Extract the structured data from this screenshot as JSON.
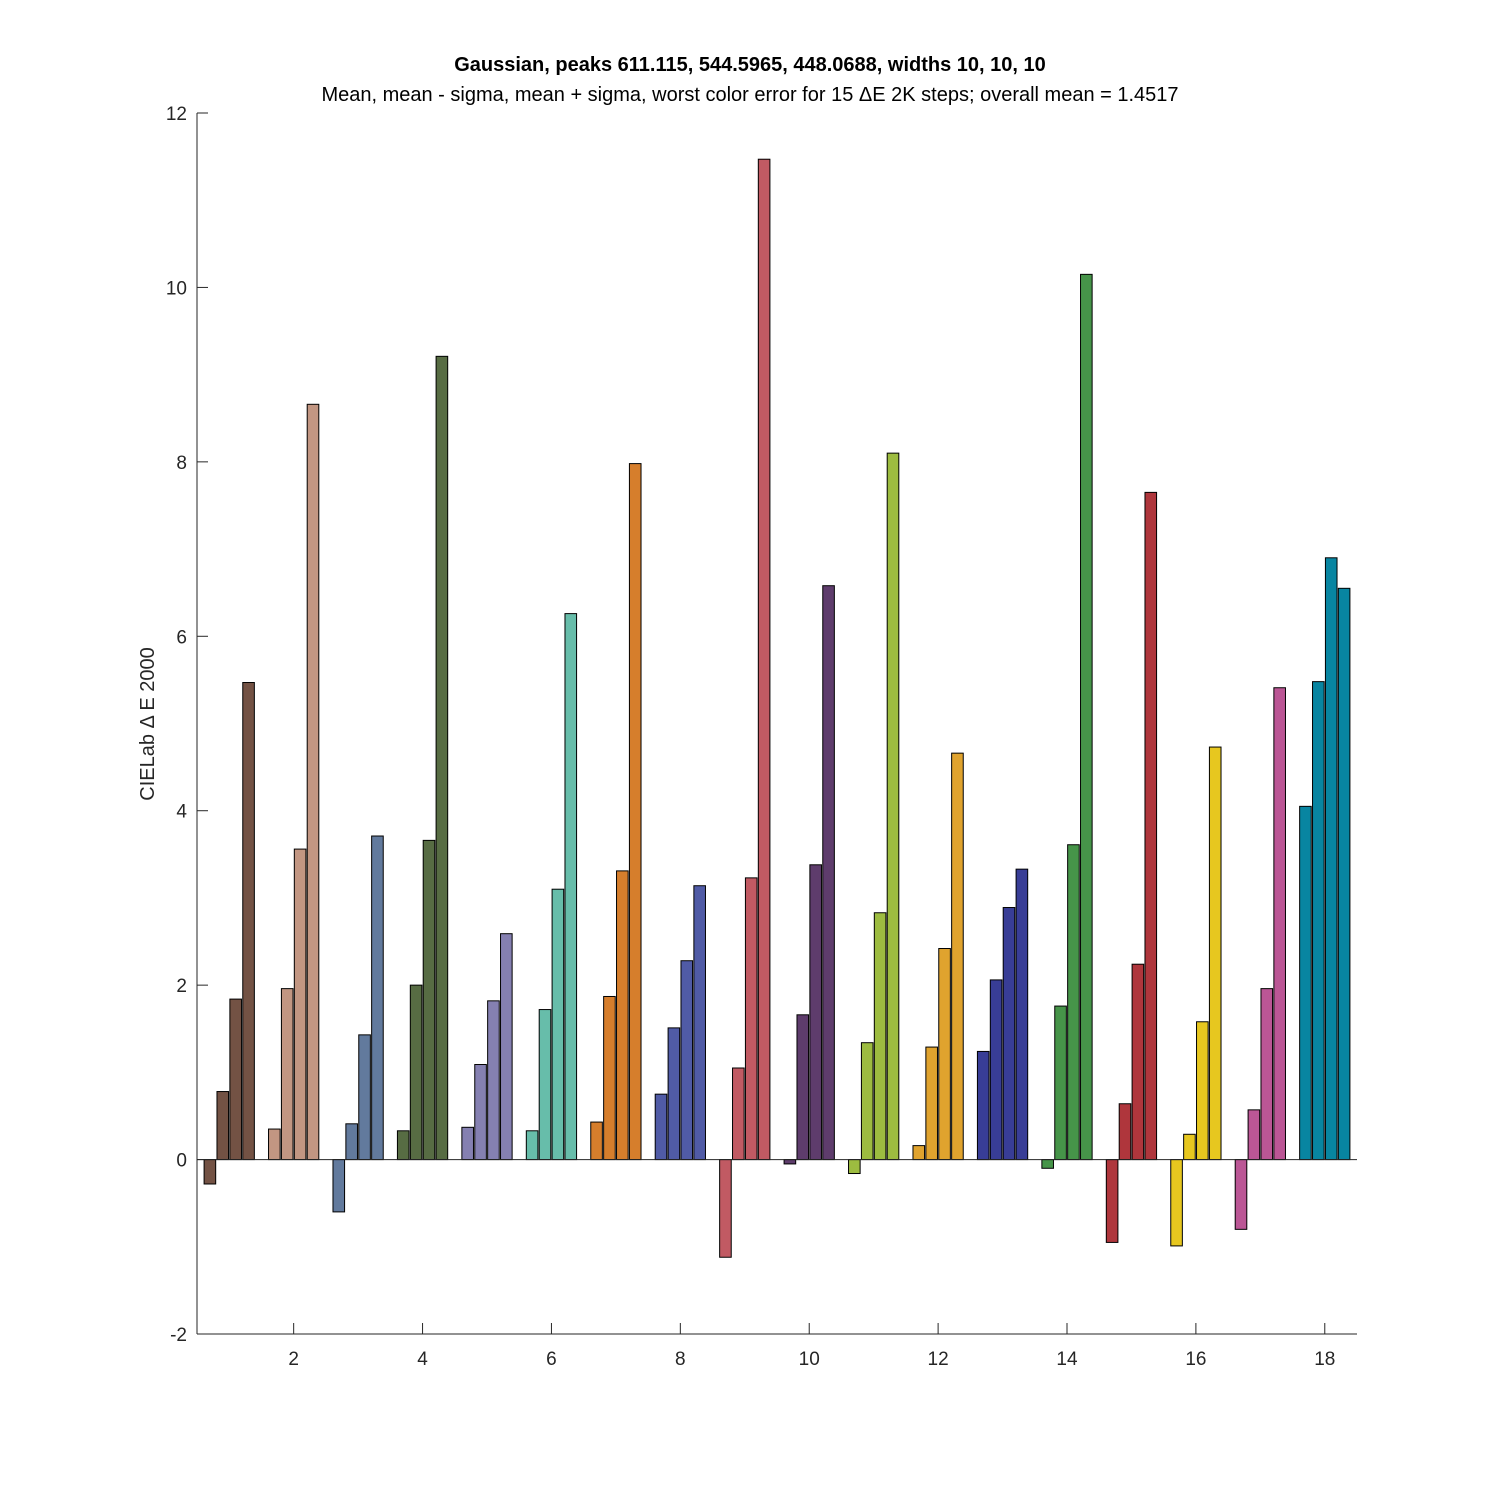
{
  "chart_data": {
    "type": "bar",
    "title": "Gaussian, peaks 611.115, 544.5965, 448.0688, widths 10, 10, 10",
    "subtitle": "Mean, mean - sigma, mean + sigma, worst color error for 15 ΔE 2K steps; overall mean = 1.4517",
    "xlabel": "",
    "ylabel": "CIELab Δ E 2000",
    "ylim": [
      -2,
      12
    ],
    "xlim": [
      0.5,
      18.5
    ],
    "grid": false,
    "x_ticks": [
      "2",
      "4",
      "6",
      "8",
      "10",
      "12",
      "14",
      "16",
      "18"
    ],
    "x_tick_values": [
      2,
      4,
      6,
      8,
      10,
      12,
      14,
      16,
      18
    ],
    "y_ticks": [
      "-2",
      "0",
      "2",
      "4",
      "6",
      "8",
      "10",
      "12"
    ],
    "y_tick_values": [
      -2,
      0,
      2,
      4,
      6,
      8,
      10,
      12
    ],
    "categories": [
      1,
      2,
      3,
      4,
      5,
      6,
      7,
      8,
      9,
      10,
      11,
      12,
      13,
      14,
      15,
      16,
      17,
      18
    ],
    "groups": [
      {
        "color": "#735244",
        "values": [
          -0.28,
          0.78,
          1.84,
          5.47
        ]
      },
      {
        "color": "#c29682",
        "values": [
          0.35,
          1.96,
          3.56,
          8.66
        ]
      },
      {
        "color": "#627a9d",
        "values": [
          -0.6,
          0.41,
          1.43,
          3.71
        ]
      },
      {
        "color": "#576c43",
        "values": [
          0.33,
          2.0,
          3.66,
          9.21
        ]
      },
      {
        "color": "#8580b1",
        "values": [
          0.37,
          1.09,
          1.82,
          2.59
        ]
      },
      {
        "color": "#67bdaa",
        "values": [
          0.33,
          1.72,
          3.1,
          6.26
        ]
      },
      {
        "color": "#d67e2c",
        "values": [
          0.43,
          1.87,
          3.31,
          7.98
        ]
      },
      {
        "color": "#505ba6",
        "values": [
          0.75,
          1.51,
          2.28,
          3.14
        ]
      },
      {
        "color": "#c15a63",
        "values": [
          -1.12,
          1.05,
          3.23,
          11.47
        ]
      },
      {
        "color": "#5e3c6c",
        "values": [
          -0.05,
          1.66,
          3.38,
          6.58
        ]
      },
      {
        "color": "#9dbc40",
        "values": [
          -0.16,
          1.34,
          2.83,
          8.1
        ]
      },
      {
        "color": "#e0a32e",
        "values": [
          0.16,
          1.29,
          2.42,
          4.66
        ]
      },
      {
        "color": "#383d96",
        "values": [
          1.24,
          2.06,
          2.89,
          3.33
        ]
      },
      {
        "color": "#469449",
        "values": [
          -0.1,
          1.76,
          3.61,
          10.15
        ]
      },
      {
        "color": "#af363c",
        "values": [
          -0.95,
          0.64,
          2.24,
          7.65
        ]
      },
      {
        "color": "#e7c71f",
        "values": [
          -0.99,
          0.29,
          1.58,
          4.73
        ]
      },
      {
        "color": "#bb5695",
        "values": [
          -0.8,
          0.57,
          1.96,
          5.41
        ]
      },
      {
        "color": "#0885a1",
        "values": [
          4.05,
          5.48,
          6.9,
          6.55
        ]
      }
    ]
  }
}
